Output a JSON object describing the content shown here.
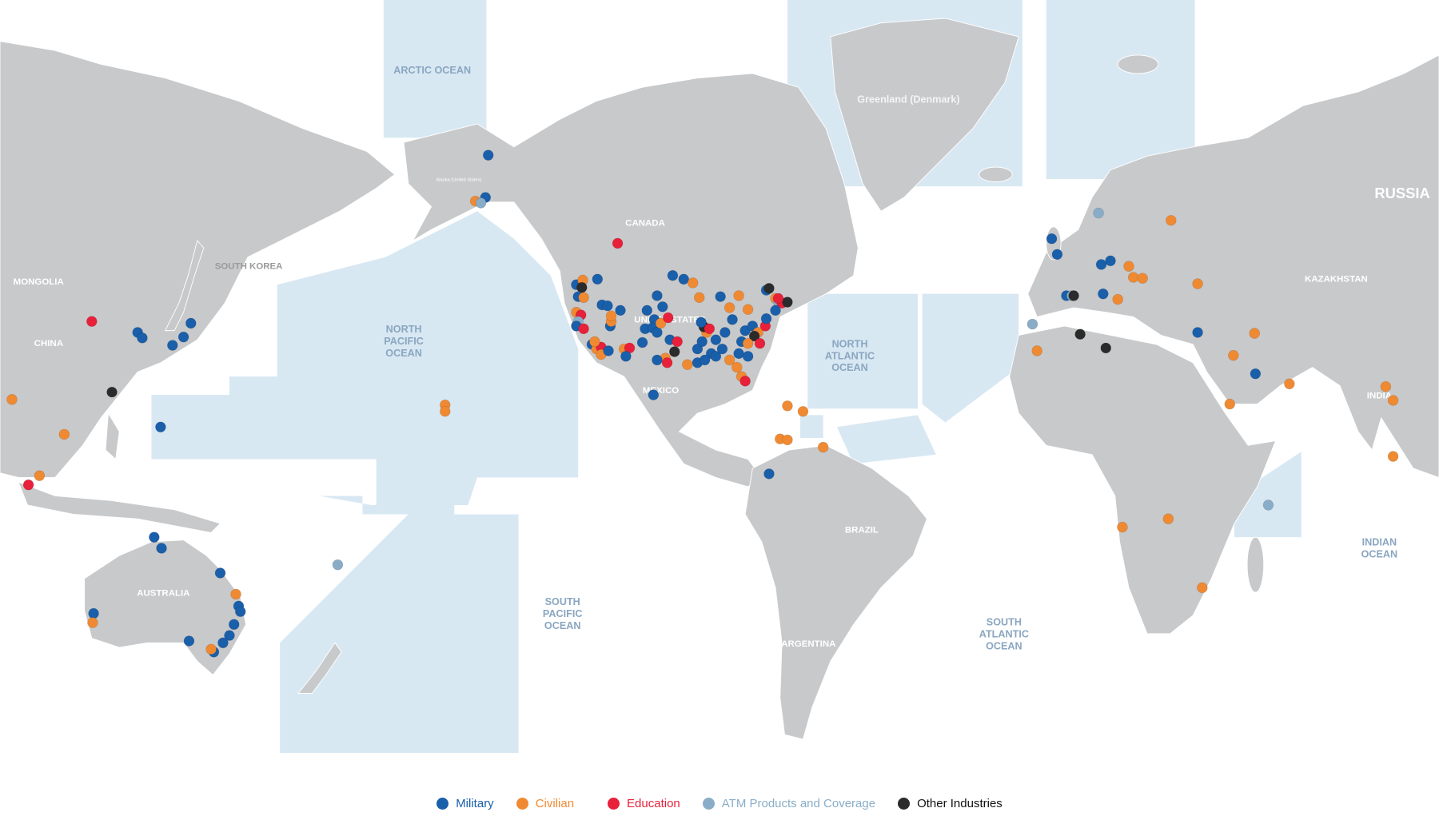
{
  "legend": [
    {
      "key": "m",
      "label": "Military",
      "color": "#1a5faa"
    },
    {
      "key": "c",
      "label": "Civilian",
      "color": "#f08a32"
    },
    {
      "key": "e",
      "label": "Education",
      "color": "#e8203a"
    },
    {
      "key": "a",
      "label": "ATM Products and Coverage",
      "color": "#89adc8"
    },
    {
      "key": "o",
      "label": "Other Industries",
      "color": "#2b2b2b"
    }
  ],
  "colors": {
    "land": "#c8c9cb",
    "ocean": "#d8e8f3",
    "ocean_label": "#8aa6c1"
  },
  "oceans": {
    "arctic": "ARCTIC OCEAN",
    "north_pacific": [
      "NORTH",
      "PACIFIC",
      "OCEAN"
    ],
    "north_atlantic": [
      "NORTH",
      "ATLANTIC",
      "OCEAN"
    ],
    "south_pacific": [
      "SOUTH",
      "PACIFIC",
      "OCEAN"
    ],
    "south_atlantic": [
      "SOUTH",
      "ATLANTIC",
      "OCEAN"
    ],
    "indian": [
      "INDIAN",
      "OCEAN"
    ]
  },
  "countries": {
    "greenland": "Greenland (Denmark)",
    "alaska": "Alaska (United States)",
    "canada": "CANADA",
    "usa": "UNITED STATES",
    "mexico": "MEXICO",
    "russia": "RUSSIA",
    "kazakhstan": "KAZAKHSTAN",
    "mongolia": "MONGOLIA",
    "china": "CHINA",
    "south_korea": "SOUTH KOREA",
    "india": "INDIA",
    "australia": "AUSTRALIA",
    "brazil": "BRAZIL",
    "argentina": "ARGENTINA"
  }
}
